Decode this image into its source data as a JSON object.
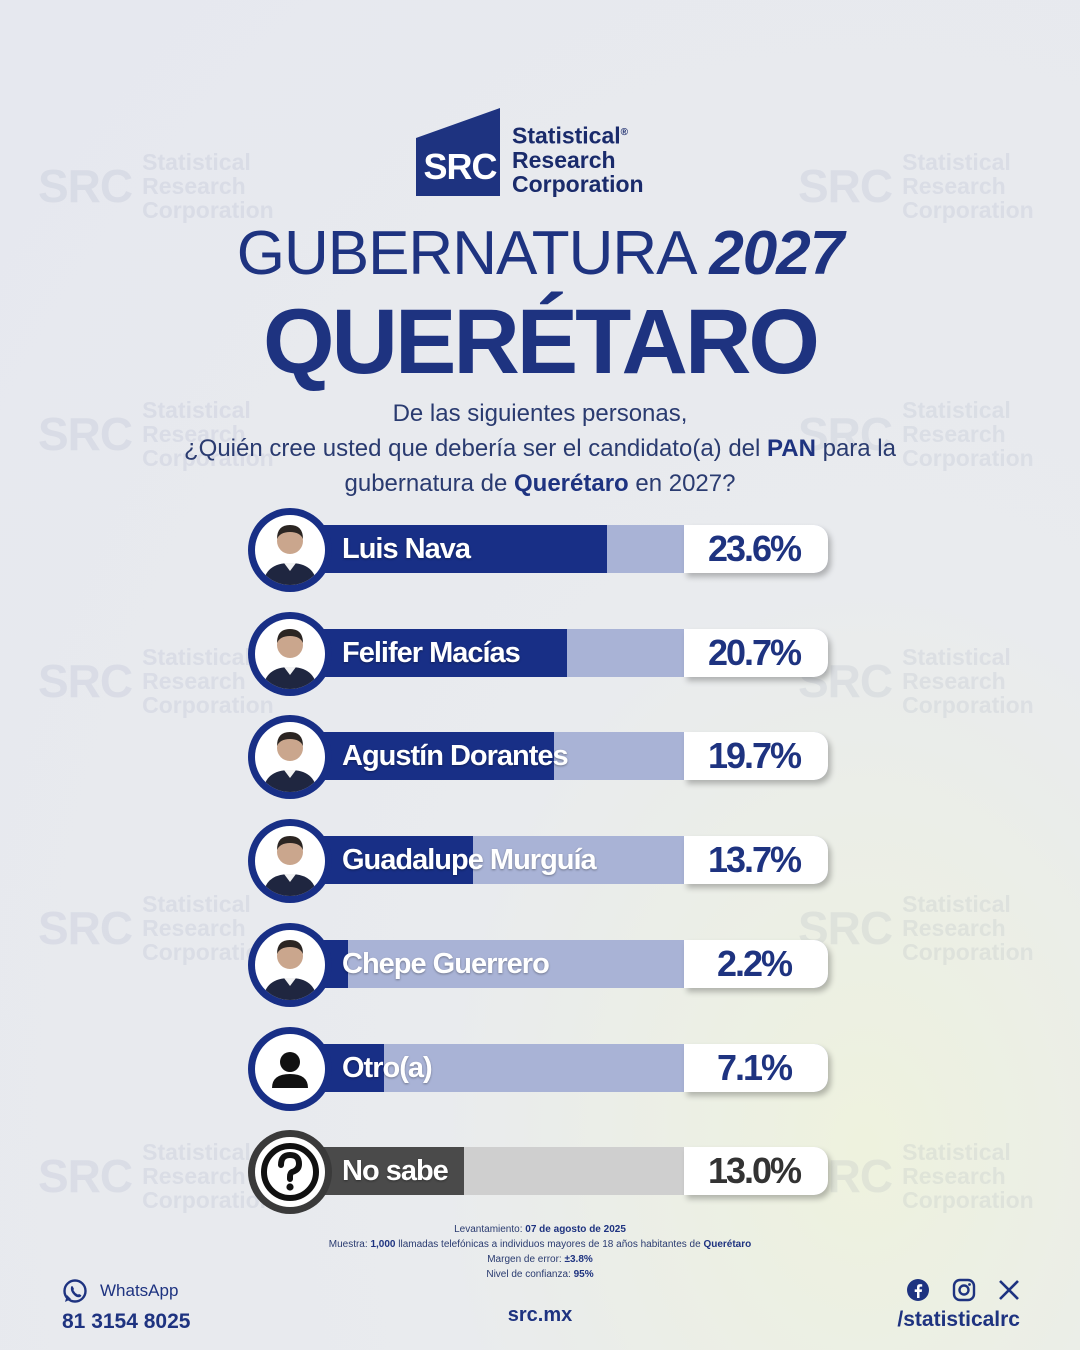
{
  "logo": {
    "mark": "SRC",
    "line1": "Statistical",
    "line2": "Research",
    "line3": "Corporation",
    "registered": "®"
  },
  "title": {
    "line1_light": "GUBERNATURA",
    "line1_bold": "2027",
    "line2": "QUERÉTARO"
  },
  "question": {
    "line1": "De las siguientes personas,",
    "line2_pre": "¿Quién cree usted que debería ser el candidato(a) del",
    "party": "PAN",
    "line2_post": "para la",
    "line3_pre": "gubernatura de",
    "state": "Querétaro",
    "line3_post": "en 2027?"
  },
  "chart_data": {
    "type": "bar",
    "orientation": "horizontal",
    "categories": [
      "Luis Nava",
      "Felifer Macías",
      "Agustín Dorantes",
      "Guadalupe Murguía",
      "Chepe Guerrero",
      "Otro(a)",
      "No sabe"
    ],
    "values": [
      23.6,
      20.7,
      19.7,
      13.7,
      2.2,
      7.1,
      13.0
    ],
    "labels": [
      "23.6%",
      "20.7%",
      "19.7%",
      "13.7%",
      "2.2%",
      "7.1%",
      "13.0%"
    ],
    "unit": "%",
    "xlim": [
      0,
      40
    ],
    "colors": {
      "fill": "#182f86",
      "track": "#a9b3d6",
      "fill_unknown": "#4a4a4a",
      "track_unknown": "#cfcfcf"
    },
    "icons": [
      "photo-icon",
      "photo-icon",
      "photo-icon",
      "photo-icon",
      "photo-icon",
      "person-icon",
      "question-icon"
    ]
  },
  "notes": {
    "fecha_label": "Levantamiento:",
    "fecha": "07 de agosto de 2025",
    "muestra_label": "Muestra:",
    "muestra_n": "1,000",
    "muestra_text": "llamadas telefónicas a individuos mayores de 18 años habitantes de",
    "muestra_state": "Querétaro",
    "error_label": "Margen de error:",
    "error": "±3.8%",
    "conf_label": "Nivel de confianza:",
    "conf": "95%"
  },
  "footer": {
    "whatsapp_label": "WhatsApp",
    "whatsapp_number": "81 3154 8025",
    "site": "src.mx",
    "social_handle": "/statisticalrc"
  }
}
